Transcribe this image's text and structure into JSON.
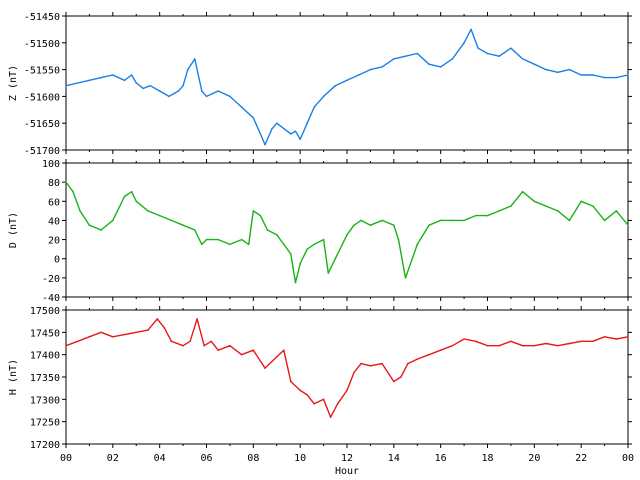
{
  "chart_data": [
    {
      "type": "line",
      "ylabel": "Z (nT)",
      "color": "#1a7fe6",
      "ylim": [
        -51700,
        -51450
      ],
      "yticks": [
        "-51450",
        "-51500",
        "-51550",
        "-51600",
        "-51650",
        "-51700"
      ],
      "ytick_values": [
        -51450,
        -51500,
        -51550,
        -51600,
        -51650,
        -51700
      ],
      "x": [
        0,
        0.5,
        1,
        1.5,
        2,
        2.5,
        2.8,
        3,
        3.3,
        3.6,
        4,
        4.4,
        4.8,
        5,
        5.2,
        5.5,
        5.8,
        6,
        6.5,
        7,
        7.5,
        8,
        8.3,
        8.5,
        8.8,
        9,
        9.3,
        9.6,
        9.8,
        10,
        10.3,
        10.6,
        11,
        11.5,
        12,
        12.5,
        13,
        13.5,
        14,
        14.5,
        15,
        15.5,
        16,
        16.5,
        17,
        17.3,
        17.6,
        18,
        18.5,
        19,
        19.5,
        20,
        20.5,
        21,
        21.5,
        22,
        22.5,
        23,
        23.5,
        24
      ],
      "y": [
        -51580,
        -51575,
        -51570,
        -51565,
        -51560,
        -51570,
        -51560,
        -51575,
        -51585,
        -51580,
        -51590,
        -51600,
        -51590,
        -51580,
        -51550,
        -51530,
        -51590,
        -51600,
        -51590,
        -51600,
        -51620,
        -51640,
        -51670,
        -51690,
        -51660,
        -51650,
        -51660,
        -51670,
        -51665,
        -51680,
        -51650,
        -51620,
        -51600,
        -51580,
        -51570,
        -51560,
        -51550,
        -51545,
        -51530,
        -51525,
        -51520,
        -51540,
        -51545,
        -51530,
        -51500,
        -51475,
        -51510,
        -51520,
        -51525,
        -51510,
        -51530,
        -51540,
        -51550,
        -51555,
        -51550,
        -51560,
        -51560,
        -51565,
        -51565,
        -51560
      ]
    },
    {
      "type": "line",
      "ylabel": "D (nT)",
      "color": "#19b319",
      "ylim": [
        -40,
        100
      ],
      "yticks": [
        "100",
        "80",
        "60",
        "40",
        "20",
        "0",
        "-20",
        "-40"
      ],
      "ytick_values": [
        100,
        80,
        60,
        40,
        20,
        0,
        -20,
        -40
      ],
      "x": [
        0,
        0.3,
        0.6,
        1,
        1.5,
        2,
        2.5,
        2.8,
        3,
        3.5,
        4,
        4.5,
        5,
        5.5,
        5.8,
        6,
        6.5,
        7,
        7.5,
        7.8,
        8,
        8.3,
        8.6,
        9,
        9.3,
        9.6,
        9.8,
        10,
        10.3,
        10.6,
        11,
        11.2,
        11.5,
        11.8,
        12,
        12.3,
        12.6,
        13,
        13.5,
        14,
        14.2,
        14.5,
        15,
        15.5,
        16,
        16.5,
        17,
        17.5,
        18,
        18.5,
        19,
        19.5,
        20,
        20.5,
        21,
        21.5,
        22,
        22.5,
        23,
        23.5,
        24
      ],
      "y": [
        80,
        70,
        50,
        35,
        30,
        40,
        65,
        70,
        60,
        50,
        45,
        40,
        35,
        30,
        15,
        20,
        20,
        15,
        20,
        15,
        50,
        45,
        30,
        25,
        15,
        5,
        -25,
        -5,
        10,
        15,
        20,
        -15,
        0,
        15,
        25,
        35,
        40,
        35,
        40,
        35,
        20,
        -20,
        15,
        35,
        40,
        40,
        40,
        45,
        45,
        50,
        55,
        70,
        60,
        55,
        50,
        40,
        60,
        55,
        40,
        50,
        35
      ]
    },
    {
      "type": "line",
      "ylabel": "H (nT)",
      "xlabel": "Hour",
      "color": "#e61a1a",
      "ylim": [
        17200,
        17500
      ],
      "yticks": [
        "17500",
        "17450",
        "17400",
        "17350",
        "17300",
        "17250",
        "17200"
      ],
      "ytick_values": [
        17500,
        17450,
        17400,
        17350,
        17300,
        17250,
        17200
      ],
      "x": [
        0,
        0.5,
        1,
        1.5,
        2,
        2.5,
        3,
        3.5,
        3.9,
        4.2,
        4.5,
        5,
        5.3,
        5.6,
        5.9,
        6.2,
        6.5,
        7,
        7.5,
        8,
        8.5,
        9,
        9.3,
        9.6,
        10,
        10.3,
        10.6,
        11,
        11.3,
        11.6,
        12,
        12.3,
        12.6,
        13,
        13.5,
        14,
        14.3,
        14.6,
        15,
        15.5,
        16,
        16.5,
        17,
        17.5,
        18,
        18.5,
        19,
        19.5,
        20,
        20.5,
        21,
        21.5,
        22,
        22.5,
        23,
        23.5,
        24
      ],
      "y": [
        17420,
        17430,
        17440,
        17450,
        17440,
        17445,
        17450,
        17455,
        17480,
        17460,
        17430,
        17420,
        17430,
        17480,
        17420,
        17430,
        17410,
        17420,
        17400,
        17410,
        17370,
        17395,
        17410,
        17340,
        17320,
        17310,
        17290,
        17300,
        17260,
        17290,
        17320,
        17360,
        17380,
        17375,
        17380,
        17340,
        17350,
        17380,
        17390,
        17400,
        17410,
        17420,
        17435,
        17430,
        17420,
        17420,
        17430,
        17420,
        17420,
        17425,
        17420,
        17425,
        17430,
        17430,
        17440,
        17435,
        17440
      ]
    }
  ],
  "x_axis": {
    "xlim": [
      0,
      24
    ],
    "tick_values": [
      0,
      2,
      4,
      6,
      8,
      10,
      12,
      14,
      16,
      18,
      20,
      22,
      24
    ],
    "ticks": [
      "00",
      "02",
      "04",
      "06",
      "08",
      "10",
      "12",
      "14",
      "16",
      "18",
      "20",
      "22",
      "00"
    ],
    "label": "Hour"
  }
}
